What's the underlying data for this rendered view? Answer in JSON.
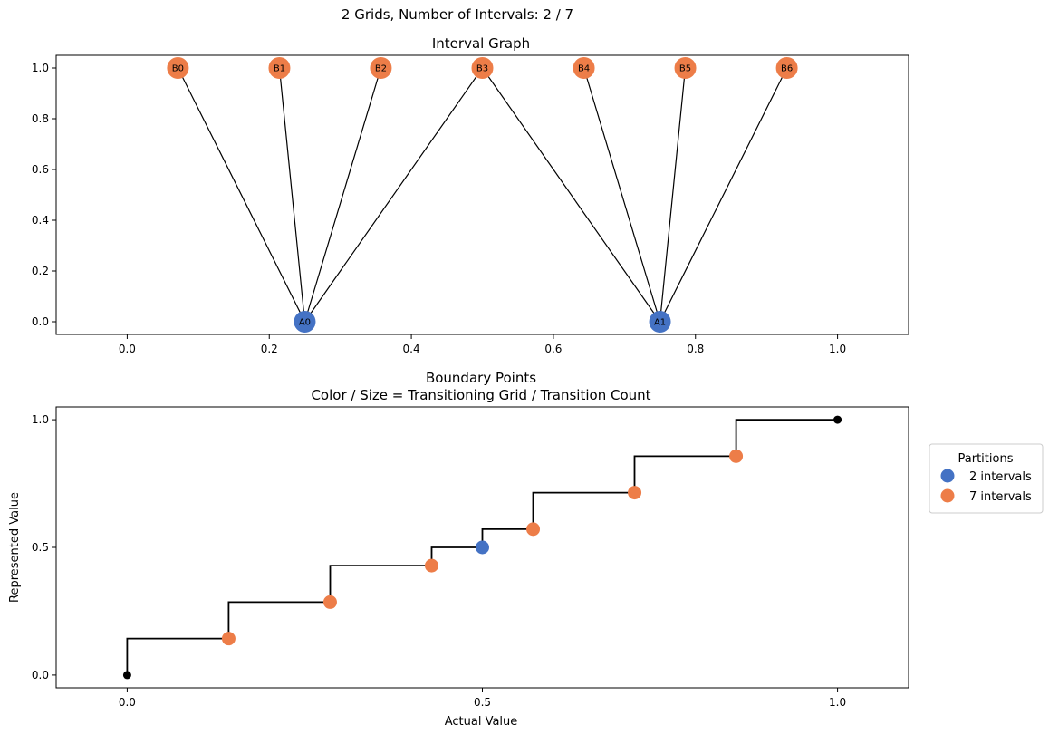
{
  "figure_title": "2 Grids, Number of Intervals: 2 / 7",
  "colors": {
    "A": "#4472c4",
    "B": "#ed7d48",
    "endpoint": "#000000",
    "line": "#000000"
  },
  "chart_data": [
    {
      "type": "scatter",
      "subtype": "interval-graph",
      "title": "Interval Graph",
      "xlim": [
        -0.1,
        1.1
      ],
      "ylim": [
        -0.05,
        1.05
      ],
      "xticks": [
        0.0,
        0.2,
        0.4,
        0.6,
        0.8,
        1.0
      ],
      "xtick_labels": [
        "0.0",
        "0.2",
        "0.4",
        "0.6",
        "0.8",
        "1.0"
      ],
      "yticks": [
        0.0,
        0.2,
        0.4,
        0.6,
        0.8,
        1.0
      ],
      "ytick_labels": [
        "0.0",
        "0.2",
        "0.4",
        "0.6",
        "0.8",
        "1.0"
      ],
      "nodes": [
        {
          "label": "A0",
          "x": 0.25,
          "y": 0.0,
          "group": "A"
        },
        {
          "label": "A1",
          "x": 0.75,
          "y": 0.0,
          "group": "A"
        },
        {
          "label": "B0",
          "x": 0.0714,
          "y": 1.0,
          "group": "B"
        },
        {
          "label": "B1",
          "x": 0.2143,
          "y": 1.0,
          "group": "B"
        },
        {
          "label": "B2",
          "x": 0.3571,
          "y": 1.0,
          "group": "B"
        },
        {
          "label": "B3",
          "x": 0.5,
          "y": 1.0,
          "group": "B"
        },
        {
          "label": "B4",
          "x": 0.6429,
          "y": 1.0,
          "group": "B"
        },
        {
          "label": "B5",
          "x": 0.7857,
          "y": 1.0,
          "group": "B"
        },
        {
          "label": "B6",
          "x": 0.9286,
          "y": 1.0,
          "group": "B"
        }
      ],
      "edges": [
        [
          "A0",
          "B0"
        ],
        [
          "A0",
          "B1"
        ],
        [
          "A0",
          "B2"
        ],
        [
          "A0",
          "B3"
        ],
        [
          "A1",
          "B3"
        ],
        [
          "A1",
          "B4"
        ],
        [
          "A1",
          "B5"
        ],
        [
          "A1",
          "B6"
        ]
      ]
    },
    {
      "type": "scatter",
      "subtype": "step-with-boundary-points",
      "title_line1": "Boundary Points",
      "title_line2": "Color / Size = Transitioning Grid / Transition Count",
      "xlabel": "Actual Value",
      "ylabel": "Represented Value",
      "xlim": [
        -0.2,
        2.2
      ],
      "ylim": [
        -0.05,
        1.05
      ],
      "xticks": [
        0.0,
        1.0,
        2.0
      ],
      "xtick_labels": [
        "0.0",
        "0.5",
        "1.0"
      ],
      "yticks": [
        0.0,
        0.5,
        1.0
      ],
      "ytick_labels": [
        "0.0",
        "0.5",
        "1.0"
      ],
      "legend_title": "Partitions",
      "legend_position": "outside-right",
      "series": [
        {
          "name": "2 intervals",
          "group": "A",
          "points": [
            {
              "x": 1.0,
              "y": 0.5
            }
          ]
        },
        {
          "name": "7 intervals",
          "group": "B",
          "points": [
            {
              "x": 0.2857,
              "y": 0.1429
            },
            {
              "x": 0.5714,
              "y": 0.2857
            },
            {
              "x": 0.8571,
              "y": 0.4286
            },
            {
              "x": 1.1429,
              "y": 0.5714
            },
            {
              "x": 1.4286,
              "y": 0.7143
            },
            {
              "x": 1.7143,
              "y": 0.8571
            }
          ]
        }
      ],
      "endpoints": [
        {
          "x": 0.0,
          "y": 0.0
        },
        {
          "x": 2.0,
          "y": 1.0
        }
      ],
      "step": [
        [
          0.0,
          0.0
        ],
        [
          0.0,
          0.1429
        ],
        [
          0.2857,
          0.1429
        ],
        [
          0.2857,
          0.2857
        ],
        [
          0.5714,
          0.2857
        ],
        [
          0.5714,
          0.4286
        ],
        [
          0.8571,
          0.4286
        ],
        [
          0.8571,
          0.5
        ],
        [
          1.0,
          0.5
        ],
        [
          1.0,
          0.5714
        ],
        [
          1.1429,
          0.5714
        ],
        [
          1.1429,
          0.7143
        ],
        [
          1.4286,
          0.7143
        ],
        [
          1.4286,
          0.8571
        ],
        [
          1.7143,
          0.8571
        ],
        [
          1.7143,
          1.0
        ],
        [
          2.0,
          1.0
        ]
      ]
    }
  ]
}
